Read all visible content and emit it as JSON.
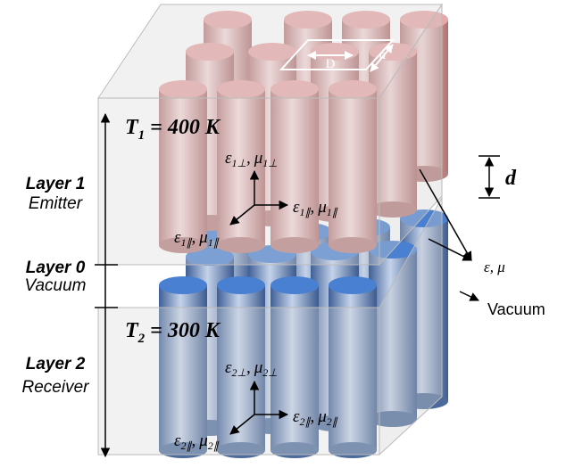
{
  "temperature_labels": [
    {
      "symbol": "T",
      "subscript": "1",
      "value": "= 400 K"
    },
    {
      "symbol": "T",
      "subscript": "2",
      "value": "= 300 K"
    }
  ],
  "layers": [
    {
      "name": "Layer 1",
      "role": "Emitter"
    },
    {
      "name": "Layer 0",
      "role": "Vacuum"
    },
    {
      "name": "Layer 2",
      "role": "Receiver"
    }
  ],
  "gap_label": "d",
  "lattice_labels": {
    "diameter": "D",
    "period": "a"
  },
  "material_label": "ε, μ",
  "vacuum_label": "Vacuum",
  "axis_labels": [
    {
      "eps": "ε",
      "eps_sub": "1⊥",
      "sep": ",",
      "mu": "μ",
      "mu_sub": "1⊥"
    },
    {
      "eps": "ε",
      "eps_sub": "1∥",
      "sep": ",",
      "mu": "μ",
      "mu_sub": "1∥"
    },
    {
      "eps": "ε",
      "eps_sub": "1∥",
      "sep": ",",
      "mu": "μ",
      "mu_sub": "1∥"
    },
    {
      "eps": "ε",
      "eps_sub": "2⊥",
      "sep": ",",
      "mu": "μ",
      "mu_sub": "2⊥"
    },
    {
      "eps": "ε",
      "eps_sub": "2∥",
      "sep": ",",
      "mu": "μ",
      "mu_sub": "2∥"
    },
    {
      "eps": "ε",
      "eps_sub": "2∥",
      "sep": ",",
      "mu": "μ",
      "mu_sub": "2∥"
    }
  ]
}
